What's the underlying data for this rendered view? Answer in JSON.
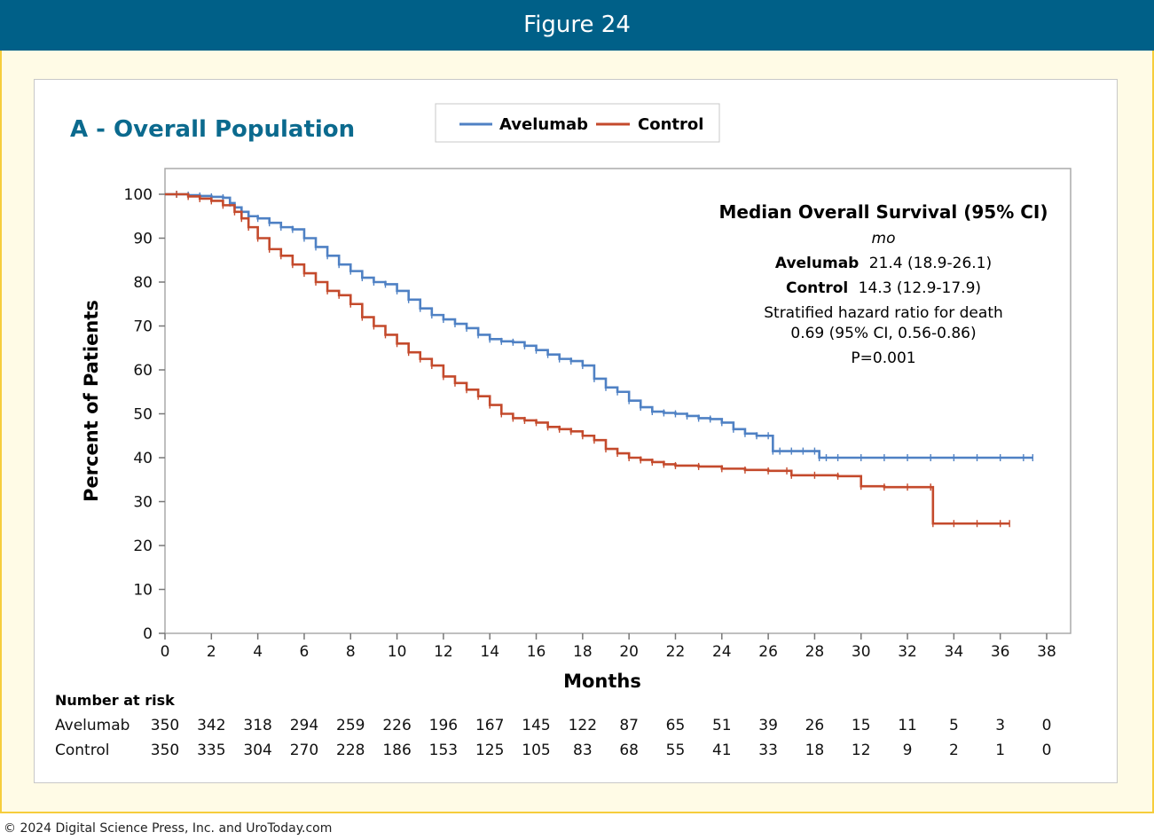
{
  "header": {
    "title": "Figure 24"
  },
  "footer": {
    "copyright": "© 2024 Digital Science Press, Inc. and UroToday.com"
  },
  "panel": {
    "subtitle": "A - Overall Population"
  },
  "annotation": {
    "heading": "Median Overall Survival (95% CI)",
    "unit": "mo",
    "avelumab_label": "Avelumab",
    "avelumab_value": "21.4 (18.9-26.1)",
    "control_label": "Control",
    "control_value": "14.3 (12.9-17.9)",
    "hr_line1": "Stratified hazard ratio for death",
    "hr_line2": "0.69 (95% CI, 0.56-0.86)",
    "p_value": "P=0.001"
  },
  "colors": {
    "avelumab": "#4f81c4",
    "control": "#c44a2c",
    "header": "#006088",
    "subtitle": "#0b6a8e"
  },
  "risk_table": {
    "title": "Number at risk",
    "rows": [
      {
        "label": "Avelumab",
        "values": [
          350,
          342,
          318,
          294,
          259,
          226,
          196,
          167,
          145,
          122,
          87,
          65,
          51,
          39,
          26,
          15,
          11,
          5,
          3,
          0
        ]
      },
      {
        "label": "Control",
        "values": [
          350,
          335,
          304,
          270,
          228,
          186,
          153,
          125,
          105,
          83,
          68,
          55,
          41,
          33,
          18,
          12,
          9,
          2,
          1,
          0
        ]
      }
    ]
  },
  "chart_data": {
    "type": "line",
    "title": "",
    "xlabel": "Months",
    "ylabel": "Percent of Patients",
    "xlim": [
      0,
      38
    ],
    "ylim": [
      0,
      100
    ],
    "xticks": [
      0,
      2,
      4,
      6,
      8,
      10,
      12,
      14,
      16,
      18,
      20,
      22,
      24,
      26,
      28,
      30,
      32,
      34,
      36,
      38
    ],
    "yticks": [
      0,
      10,
      20,
      30,
      40,
      50,
      60,
      70,
      80,
      90,
      100
    ],
    "legend_position": "top",
    "grid": false,
    "series": [
      {
        "name": "Avelumab",
        "x": [
          0,
          0.5,
          1,
          1.5,
          2,
          2.5,
          2.8,
          3,
          3.3,
          3.6,
          4,
          4.5,
          5,
          5.5,
          6,
          6.5,
          7,
          7.5,
          8,
          8.5,
          9,
          9.5,
          10,
          10.5,
          11,
          11.5,
          12,
          12.5,
          13,
          13.5,
          14,
          14.5,
          15,
          15.5,
          16,
          16.5,
          17,
          17.5,
          18,
          18.5,
          19,
          19.5,
          20,
          20.5,
          21,
          21.5,
          22,
          22.5,
          23,
          23.5,
          24,
          24.5,
          25,
          25.5,
          26,
          26.2,
          26.5,
          27,
          27.5,
          28,
          28.2,
          28.5,
          29,
          30,
          31,
          32,
          33,
          34,
          35,
          36,
          37,
          37.4
        ],
        "y": [
          100,
          100,
          99.8,
          99.6,
          99.4,
          99.2,
          98,
          97,
          96,
          95,
          94.5,
          93.5,
          92.5,
          92,
          90,
          88,
          86,
          84,
          82.5,
          81,
          80,
          79.5,
          78,
          76,
          74,
          72.5,
          71.5,
          70.5,
          69.5,
          68,
          67,
          66.5,
          66.3,
          65.5,
          64.5,
          63.5,
          62.5,
          62,
          61,
          58,
          56,
          55,
          53,
          51.5,
          50.5,
          50.2,
          50,
          49.5,
          49,
          48.8,
          48,
          46.5,
          45.5,
          45,
          45,
          41.5,
          41.5,
          41.5,
          41.5,
          41.5,
          40,
          40,
          40,
          40,
          40,
          40,
          40,
          40,
          40,
          40,
          40,
          40
        ]
      },
      {
        "name": "Control",
        "x": [
          0,
          0.5,
          1,
          1.5,
          2,
          2.5,
          3,
          3.3,
          3.6,
          4,
          4.5,
          5,
          5.5,
          6,
          6.5,
          7,
          7.5,
          8,
          8.5,
          9,
          9.5,
          10,
          10.5,
          11,
          11.5,
          12,
          12.5,
          13,
          13.5,
          14,
          14.5,
          15,
          15.5,
          16,
          16.5,
          17,
          17.5,
          18,
          18.5,
          19,
          19.5,
          20,
          20.5,
          21,
          21.5,
          22,
          23,
          24,
          25,
          26,
          26.8,
          27,
          28,
          29,
          30,
          31,
          32,
          33,
          33.1,
          34,
          35,
          36,
          36.4
        ],
        "y": [
          100,
          100,
          99.5,
          99,
          98.5,
          97.5,
          96,
          94.5,
          92.5,
          90,
          87.5,
          86,
          84,
          82,
          80,
          78,
          77,
          75,
          72,
          70,
          68,
          66,
          64,
          62.5,
          61,
          58.5,
          57,
          55.5,
          54,
          52,
          50,
          49,
          48.5,
          48,
          47,
          46.5,
          46,
          45,
          44,
          42,
          41,
          40,
          39.5,
          39,
          38.5,
          38.2,
          38,
          37.5,
          37.2,
          37,
          37,
          36,
          36,
          35.8,
          33.5,
          33.3,
          33.3,
          33.3,
          25,
          25,
          25,
          25,
          25
        ]
      }
    ]
  }
}
